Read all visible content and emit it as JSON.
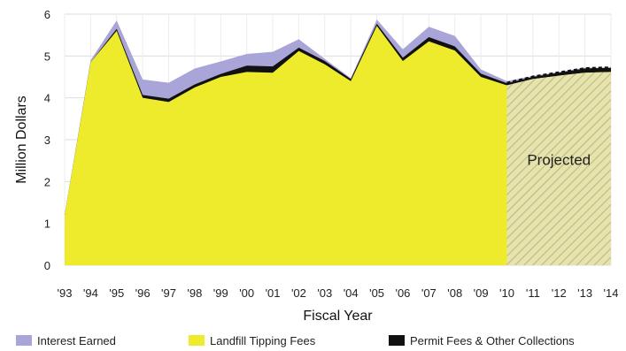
{
  "chart_data": {
    "type": "area",
    "stacked": true,
    "x": [
      "'93",
      "'94",
      "'95",
      "'96",
      "'97",
      "'98",
      "'99",
      "'00",
      "'01",
      "'02",
      "'03",
      "'04",
      "'05",
      "'06",
      "'07",
      "'08",
      "'09",
      "'10",
      "'11",
      "'12",
      "'13",
      "'14"
    ],
    "projected_from": "'10",
    "xlabel": "Fiscal Year",
    "ylabel": "Million Dollars",
    "ylim": [
      0,
      6
    ],
    "yticks": [
      0,
      1,
      2,
      3,
      4,
      5,
      6
    ],
    "grid": true,
    "legend_position": "bottom",
    "annotation": "Projected",
    "series": [
      {
        "name": "Landfill Tipping Fees",
        "color": "#eeeb2d",
        "values": [
          1.2,
          4.85,
          5.6,
          4.0,
          3.9,
          4.25,
          4.5,
          4.62,
          4.6,
          5.12,
          4.8,
          4.4,
          5.72,
          4.88,
          5.35,
          5.13,
          4.5,
          4.3,
          4.45,
          4.53,
          4.6,
          4.62
        ]
      },
      {
        "name": "Permit Fees & Other Collections",
        "color": "#111111",
        "values": [
          0.0,
          0.0,
          0.05,
          0.07,
          0.08,
          0.07,
          0.07,
          0.15,
          0.15,
          0.08,
          0.08,
          0.05,
          0.05,
          0.08,
          0.1,
          0.1,
          0.08,
          0.05,
          0.05,
          0.07,
          0.1,
          0.1
        ]
      },
      {
        "name": "Interest Earned",
        "color": "#a9a5d8",
        "values": [
          0.0,
          0.05,
          0.2,
          0.37,
          0.38,
          0.38,
          0.3,
          0.28,
          0.35,
          0.2,
          0.05,
          0.02,
          0.1,
          0.2,
          0.25,
          0.25,
          0.1,
          0.05,
          0.02,
          0.02,
          0.02,
          0.0
        ]
      }
    ],
    "legend": [
      "Interest Earned",
      "Landfill Tipping Fees",
      "Permit Fees & Other Collections"
    ]
  }
}
